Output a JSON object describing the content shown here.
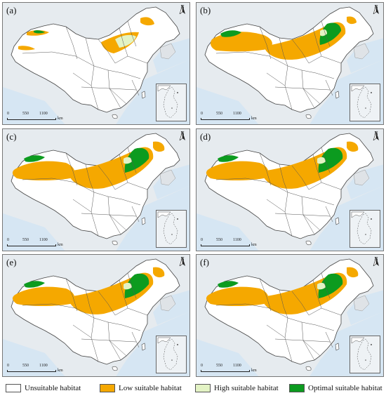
{
  "panels": [
    {
      "label": "(a)",
      "north": "N",
      "scale": [
        "0",
        "550",
        "1100"
      ],
      "scale_unit": "km",
      "variant": 0
    },
    {
      "label": "(b)",
      "north": "N",
      "scale": [
        "0",
        "550",
        "1100"
      ],
      "scale_unit": "km",
      "variant": 1
    },
    {
      "label": "(c)",
      "north": "N",
      "scale": [
        "0",
        "550",
        "1100"
      ],
      "scale_unit": "km",
      "variant": 2
    },
    {
      "label": "(d)",
      "north": "N",
      "scale": [
        "0",
        "550",
        "1100"
      ],
      "scale_unit": "km",
      "variant": 2
    },
    {
      "label": "(e)",
      "north": "N",
      "scale": [
        "0",
        "550",
        "1100"
      ],
      "scale_unit": "km",
      "variant": 2
    },
    {
      "label": "(f)",
      "north": "N",
      "scale": [
        "0",
        "550",
        "1100"
      ],
      "scale_unit": "km",
      "variant": 2
    }
  ],
  "legend": [
    {
      "label": "Unsuitable habitat",
      "color": "#ffffff"
    },
    {
      "label": "Low suitable habitat",
      "color": "#f5a800"
    },
    {
      "label": "High suitable habitat",
      "color": "#e3f3c4"
    },
    {
      "label": "Optimal suitable habitat",
      "color": "#0c9b1f"
    }
  ],
  "colors": {
    "sea": "#d6e6f3",
    "land_other": "#e6ebef",
    "land": "#ffffff",
    "border": "#444444"
  }
}
